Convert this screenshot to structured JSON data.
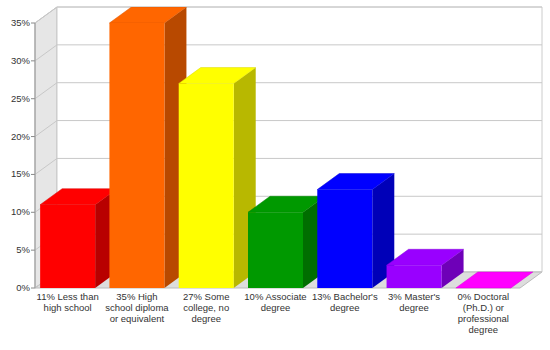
{
  "chart_data": {
    "type": "bar",
    "categories": [
      "11% Less than high school",
      "35% High school diploma or equivalent",
      "27% Some college, no degree",
      "10% Associate degree",
      "13% Bachelor's degree",
      "3% Master's degree",
      "0% Doctoral (Ph.D.) or professional degree"
    ],
    "values": [
      11,
      35,
      27,
      10,
      13,
      3,
      0
    ],
    "colors": [
      "#ff0000",
      "#ff6600",
      "#ffff00",
      "#009900",
      "#0000ff",
      "#9900ff",
      "#ff00ff"
    ],
    "ylim": [
      0,
      35
    ],
    "yticks": [
      {
        "value": 0,
        "label": "0%"
      },
      {
        "value": 5,
        "label": "5%"
      },
      {
        "value": 10,
        "label": "10%"
      },
      {
        "value": 15,
        "label": "15%"
      },
      {
        "value": 20,
        "label": "20%"
      },
      {
        "value": 25,
        "label": "25%"
      },
      {
        "value": 30,
        "label": "30%"
      },
      {
        "value": 35,
        "label": "35%"
      }
    ],
    "grid": true
  }
}
